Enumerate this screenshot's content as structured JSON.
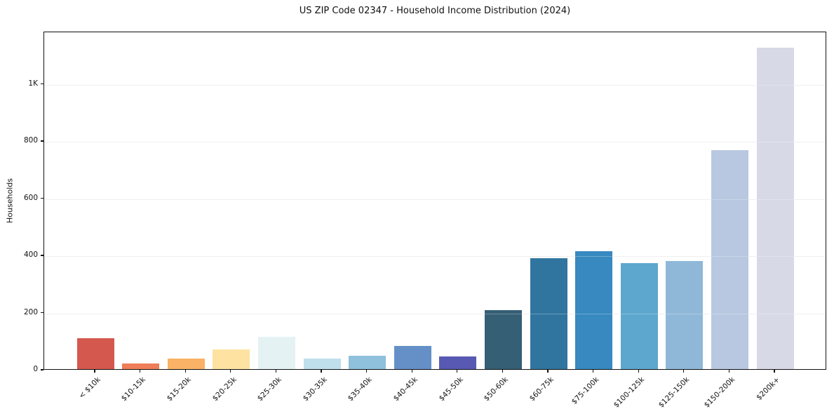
{
  "chart_data": {
    "type": "bar",
    "title": "US ZIP Code 02347 - Household Income Distribution (2024)",
    "xlabel": "",
    "ylabel": "Households",
    "categories": [
      "< $10k",
      "$10-15k",
      "$15-20k",
      "$20-25k",
      "$25-30k",
      "$30-35k",
      "$35-40k",
      "$40-45k",
      "$45-50k",
      "$50-60k",
      "$60-75k",
      "$75-100k",
      "$100-125k",
      "$125-150k",
      "$150-200k",
      "$200k+"
    ],
    "values": [
      108,
      20,
      37,
      69,
      114,
      37,
      46,
      80,
      45,
      207,
      388,
      413,
      370,
      379,
      767,
      1125
    ],
    "bar_colors": [
      "#d5584e",
      "#ef7d57",
      "#f9b266",
      "#fde2a2",
      "#e5f2f4",
      "#bfdfed",
      "#8fc0dc",
      "#6590c7",
      "#5859b2",
      "#355f75",
      "#30759f",
      "#3789c0",
      "#5da7cf",
      "#8fb8d8",
      "#b8c8e0",
      "#d7d9e6"
    ],
    "yticks": {
      "values": [
        0,
        200,
        400,
        600,
        800,
        1000
      ],
      "labels": [
        "0",
        "200",
        "400",
        "600",
        "800",
        "1K"
      ]
    },
    "ylim": [
      0,
      1183
    ],
    "grid": "horizontal",
    "legend_position": "none"
  },
  "colors": {
    "background": "#ffffff",
    "grid": "#e9e9e9",
    "spine": "#111111",
    "text": "#111111"
  }
}
